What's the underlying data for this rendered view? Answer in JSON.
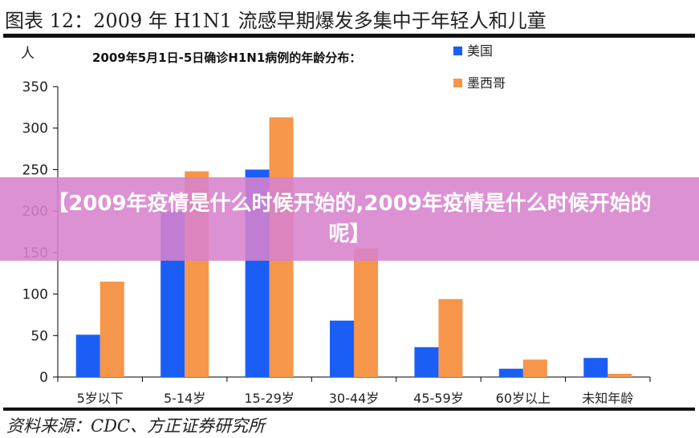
{
  "figure_title": "图表 12：2009 年 H1N1 流感早期爆发多集中于年轻人和儿童",
  "source": "资料来源：CDC、方正证券研究所",
  "banner_text": "【2009年疫情是什么时候开始的,2009年疫情是什么时候开始的呢】",
  "chart_data": {
    "type": "bar",
    "title": "2009年5月1日-5日确诊H1N1病例的年龄分布：",
    "ylabel": "人",
    "xlabel": "",
    "categories": [
      "5岁以下",
      "5-14岁",
      "15-29岁",
      "30-44岁",
      "45-59岁",
      "60岁以上",
      "未知年龄"
    ],
    "series": [
      {
        "name": "美国",
        "color": "#1a5ef5",
        "values": [
          51,
          200,
          250,
          68,
          36,
          10,
          23
        ]
      },
      {
        "name": "墨西哥",
        "color": "#f5964a",
        "values": [
          115,
          248,
          313,
          155,
          94,
          21,
          4
        ]
      }
    ],
    "ylim": [
      0,
      350
    ],
    "yticks": [
      0,
      50,
      100,
      150,
      200,
      250,
      300,
      350
    ],
    "grid": false,
    "legend_position": "top-right"
  }
}
